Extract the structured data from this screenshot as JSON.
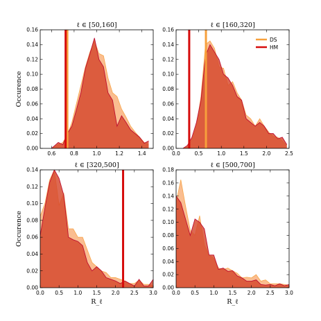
{
  "chart_data": [
    {
      "type": "area",
      "title": "ℓ ∈ [50,160]",
      "ylabel": "Occurence",
      "xlabel": "",
      "xlim": [
        0.5,
        1.5
      ],
      "ylim": [
        0,
        0.16
      ],
      "xticks": [
        0.6,
        0.8,
        1.0,
        1.2,
        1.4
      ],
      "xtick_labels": [
        "0.6",
        "0.8",
        "1.0",
        "1.2",
        "1.4"
      ],
      "yticks": [
        0.0,
        0.02,
        0.04,
        0.06,
        0.08,
        0.1,
        0.12,
        0.14,
        0.16
      ],
      "ytick_labels": [
        "0.00",
        "0.02",
        "0.04",
        "0.06",
        "0.08",
        "0.10",
        "0.12",
        "0.14",
        "0.16"
      ],
      "legend": false,
      "series": [
        {
          "name": "DS",
          "x": [
            0.6,
            0.66,
            0.7,
            0.74,
            0.78,
            0.82,
            0.86,
            0.9,
            0.94,
            0.98,
            1.02,
            1.06,
            1.1,
            1.14,
            1.18,
            1.22,
            1.26,
            1.3,
            1.34,
            1.38,
            1.42,
            1.46
          ],
          "values": [
            0,
            0.005,
            0.008,
            0.018,
            0.035,
            0.06,
            0.085,
            0.11,
            0.13,
            0.145,
            0.128,
            0.125,
            0.095,
            0.075,
            0.07,
            0.053,
            0.042,
            0.03,
            0.022,
            0.015,
            0.008,
            0.005
          ]
        },
        {
          "name": "HM",
          "x": [
            0.6,
            0.66,
            0.7,
            0.74,
            0.78,
            0.82,
            0.86,
            0.9,
            0.94,
            0.98,
            1.02,
            1.06,
            1.1,
            1.14,
            1.18,
            1.22,
            1.26,
            1.3,
            1.34,
            1.38,
            1.42,
            1.46
          ],
          "values": [
            0,
            0.008,
            0.005,
            0.02,
            0.03,
            0.052,
            0.075,
            0.108,
            0.128,
            0.149,
            0.12,
            0.11,
            0.075,
            0.065,
            0.03,
            0.044,
            0.035,
            0.025,
            0.02,
            0.015,
            0.007,
            0.01
          ]
        }
      ],
      "vlines": [
        {
          "series": "DS",
          "x": 0.74
        },
        {
          "series": "HM",
          "x": 0.725
        }
      ]
    },
    {
      "type": "area",
      "title": "ℓ ∈ [160,320]",
      "ylabel": "",
      "xlabel": "",
      "xlim": [
        0.0,
        2.5
      ],
      "ylim": [
        0,
        0.16
      ],
      "xticks": [
        0.0,
        0.5,
        1.0,
        1.5,
        2.0,
        2.5
      ],
      "xtick_labels": [
        "0.0",
        "0.5",
        "1.0",
        "1.5",
        "2.0",
        "2.5"
      ],
      "yticks": [
        0.0,
        0.02,
        0.04,
        0.06,
        0.08,
        0.1,
        0.12,
        0.14,
        0.16
      ],
      "ytick_labels": [
        "0.00",
        "0.02",
        "0.04",
        "0.06",
        "0.08",
        "0.10",
        "0.12",
        "0.14",
        "0.16"
      ],
      "legend": true,
      "legend_position": "top-right",
      "series": [
        {
          "name": "DS",
          "x": [
            0.15,
            0.25,
            0.35,
            0.45,
            0.55,
            0.65,
            0.75,
            0.85,
            0.95,
            1.05,
            1.15,
            1.25,
            1.35,
            1.45,
            1.55,
            1.65,
            1.75,
            1.85,
            1.95,
            2.05,
            2.15,
            2.25,
            2.35,
            2.45
          ],
          "values": [
            0,
            0.002,
            0.012,
            0.03,
            0.07,
            0.14,
            0.145,
            0.135,
            0.11,
            0.108,
            0.085,
            0.09,
            0.075,
            0.065,
            0.045,
            0.04,
            0.03,
            0.04,
            0.03,
            0.022,
            0.016,
            0.015,
            0.01,
            0.003
          ]
        },
        {
          "name": "HM",
          "x": [
            0.15,
            0.25,
            0.35,
            0.45,
            0.55,
            0.65,
            0.75,
            0.85,
            0.95,
            1.05,
            1.15,
            1.25,
            1.35,
            1.45,
            1.55,
            1.65,
            1.75,
            1.85,
            1.95,
            2.05,
            2.15,
            2.25,
            2.35,
            2.45
          ],
          "values": [
            0,
            0.004,
            0.015,
            0.035,
            0.065,
            0.125,
            0.14,
            0.13,
            0.12,
            0.1,
            0.095,
            0.085,
            0.07,
            0.065,
            0.04,
            0.035,
            0.03,
            0.035,
            0.03,
            0.02,
            0.02,
            0.013,
            0.015,
            0.005
          ]
        }
      ],
      "vlines": [
        {
          "series": "DS",
          "x": 0.66
        },
        {
          "series": "HM",
          "x": 0.29
        }
      ]
    },
    {
      "type": "area",
      "title": "ℓ ∈ [320,500]",
      "ylabel": "Occurence",
      "xlabel": "R_ℓ",
      "xlim": [
        0.0,
        3.0
      ],
      "ylim": [
        0,
        0.14
      ],
      "xticks": [
        0.0,
        0.5,
        1.0,
        1.5,
        2.0,
        2.5,
        3.0
      ],
      "xtick_labels": [
        "0.0",
        "0.5",
        "1.0",
        "1.5",
        "2.0",
        "2.5",
        "3.0"
      ],
      "yticks": [
        0.0,
        0.02,
        0.04,
        0.06,
        0.08,
        0.1,
        0.12,
        0.14
      ],
      "ytick_labels": [
        "0.00",
        "0.02",
        "0.04",
        "0.06",
        "0.08",
        "0.10",
        "0.12",
        "0.14"
      ],
      "legend": false,
      "series": [
        {
          "name": "DS",
          "x": [
            0.0,
            0.125,
            0.25,
            0.375,
            0.5,
            0.625,
            0.75,
            0.875,
            1.0,
            1.125,
            1.25,
            1.375,
            1.5,
            1.625,
            1.75,
            1.875,
            2.0,
            2.125,
            2.25,
            2.375,
            2.5,
            2.625,
            2.75,
            2.875,
            3.0
          ],
          "values": [
            0.085,
            0.1,
            0.128,
            0.14,
            0.098,
            0.112,
            0.07,
            0.07,
            0.06,
            0.06,
            0.045,
            0.03,
            0.025,
            0.02,
            0.018,
            0.012,
            0.012,
            0.01,
            0.008,
            0.005,
            0.005,
            0.009,
            0.004,
            0.004,
            0.002
          ]
        },
        {
          "name": "HM",
          "x": [
            0.0,
            0.125,
            0.25,
            0.375,
            0.5,
            0.625,
            0.75,
            0.875,
            1.0,
            1.125,
            1.25,
            1.375,
            1.5,
            1.625,
            1.75,
            1.875,
            2.0,
            2.125,
            2.25,
            2.375,
            2.5,
            2.625,
            2.75,
            2.875,
            3.0
          ],
          "values": [
            0.062,
            0.095,
            0.125,
            0.14,
            0.13,
            0.11,
            0.06,
            0.057,
            0.055,
            0.05,
            0.03,
            0.02,
            0.025,
            0.02,
            0.012,
            0.01,
            0.008,
            0.005,
            0.008,
            0.005,
            0.002,
            0.01,
            0.002,
            0.002,
            0.01
          ]
        }
      ],
      "vlines": [
        {
          "series": "HM",
          "x": 2.2
        }
      ]
    },
    {
      "type": "area",
      "title": "ℓ ∈ [500,700]",
      "ylabel": "",
      "xlabel": "R_ℓ",
      "xlim": [
        0.0,
        3.0
      ],
      "ylim": [
        0,
        0.18
      ],
      "xticks": [
        0.0,
        0.5,
        1.0,
        1.5,
        2.0,
        2.5,
        3.0
      ],
      "xtick_labels": [
        "0.0",
        "0.5",
        "1.0",
        "1.5",
        "2.0",
        "2.5",
        "3.0"
      ],
      "yticks": [
        0.0,
        0.02,
        0.04,
        0.06,
        0.08,
        0.1,
        0.12,
        0.14,
        0.16,
        0.18
      ],
      "ytick_labels": [
        "0.00",
        "0.02",
        "0.04",
        "0.06",
        "0.08",
        "0.10",
        "0.12",
        "0.14",
        "0.16",
        "0.18"
      ],
      "legend": false,
      "series": [
        {
          "name": "DS",
          "x": [
            0.0,
            0.125,
            0.25,
            0.375,
            0.5,
            0.625,
            0.75,
            0.875,
            1.0,
            1.125,
            1.25,
            1.375,
            1.5,
            1.625,
            1.75,
            1.875,
            2.0,
            2.125,
            2.25,
            2.375,
            2.5,
            2.625,
            2.75,
            2.875,
            3.0
          ],
          "values": [
            0.13,
            0.165,
            0.125,
            0.088,
            0.08,
            0.11,
            0.065,
            0.05,
            0.045,
            0.03,
            0.028,
            0.03,
            0.026,
            0.022,
            0.015,
            0.016,
            0.015,
            0.02,
            0.01,
            0.012,
            0.006,
            0.006,
            0.006,
            0.005,
            0.004
          ]
        },
        {
          "name": "HM",
          "x": [
            0.0,
            0.125,
            0.25,
            0.375,
            0.5,
            0.625,
            0.75,
            0.875,
            1.0,
            1.125,
            1.25,
            1.375,
            1.5,
            1.625,
            1.75,
            1.875,
            2.0,
            2.125,
            2.25,
            2.375,
            2.5,
            2.625,
            2.75,
            2.875,
            3.0
          ],
          "values": [
            0.14,
            0.13,
            0.105,
            0.08,
            0.105,
            0.1,
            0.09,
            0.05,
            0.05,
            0.028,
            0.03,
            0.025,
            0.026,
            0.018,
            0.015,
            0.01,
            0.01,
            0.012,
            0.005,
            0.004,
            0.005,
            0.003,
            0.006,
            0.003,
            0.005
          ]
        }
      ],
      "vlines": []
    }
  ],
  "colors": {
    "DS": "#f7a03c",
    "HM": "#d60b0b",
    "DS_fill": "#f9b27d",
    "HM_fill": "#d5472c",
    "axis": "#000000"
  }
}
